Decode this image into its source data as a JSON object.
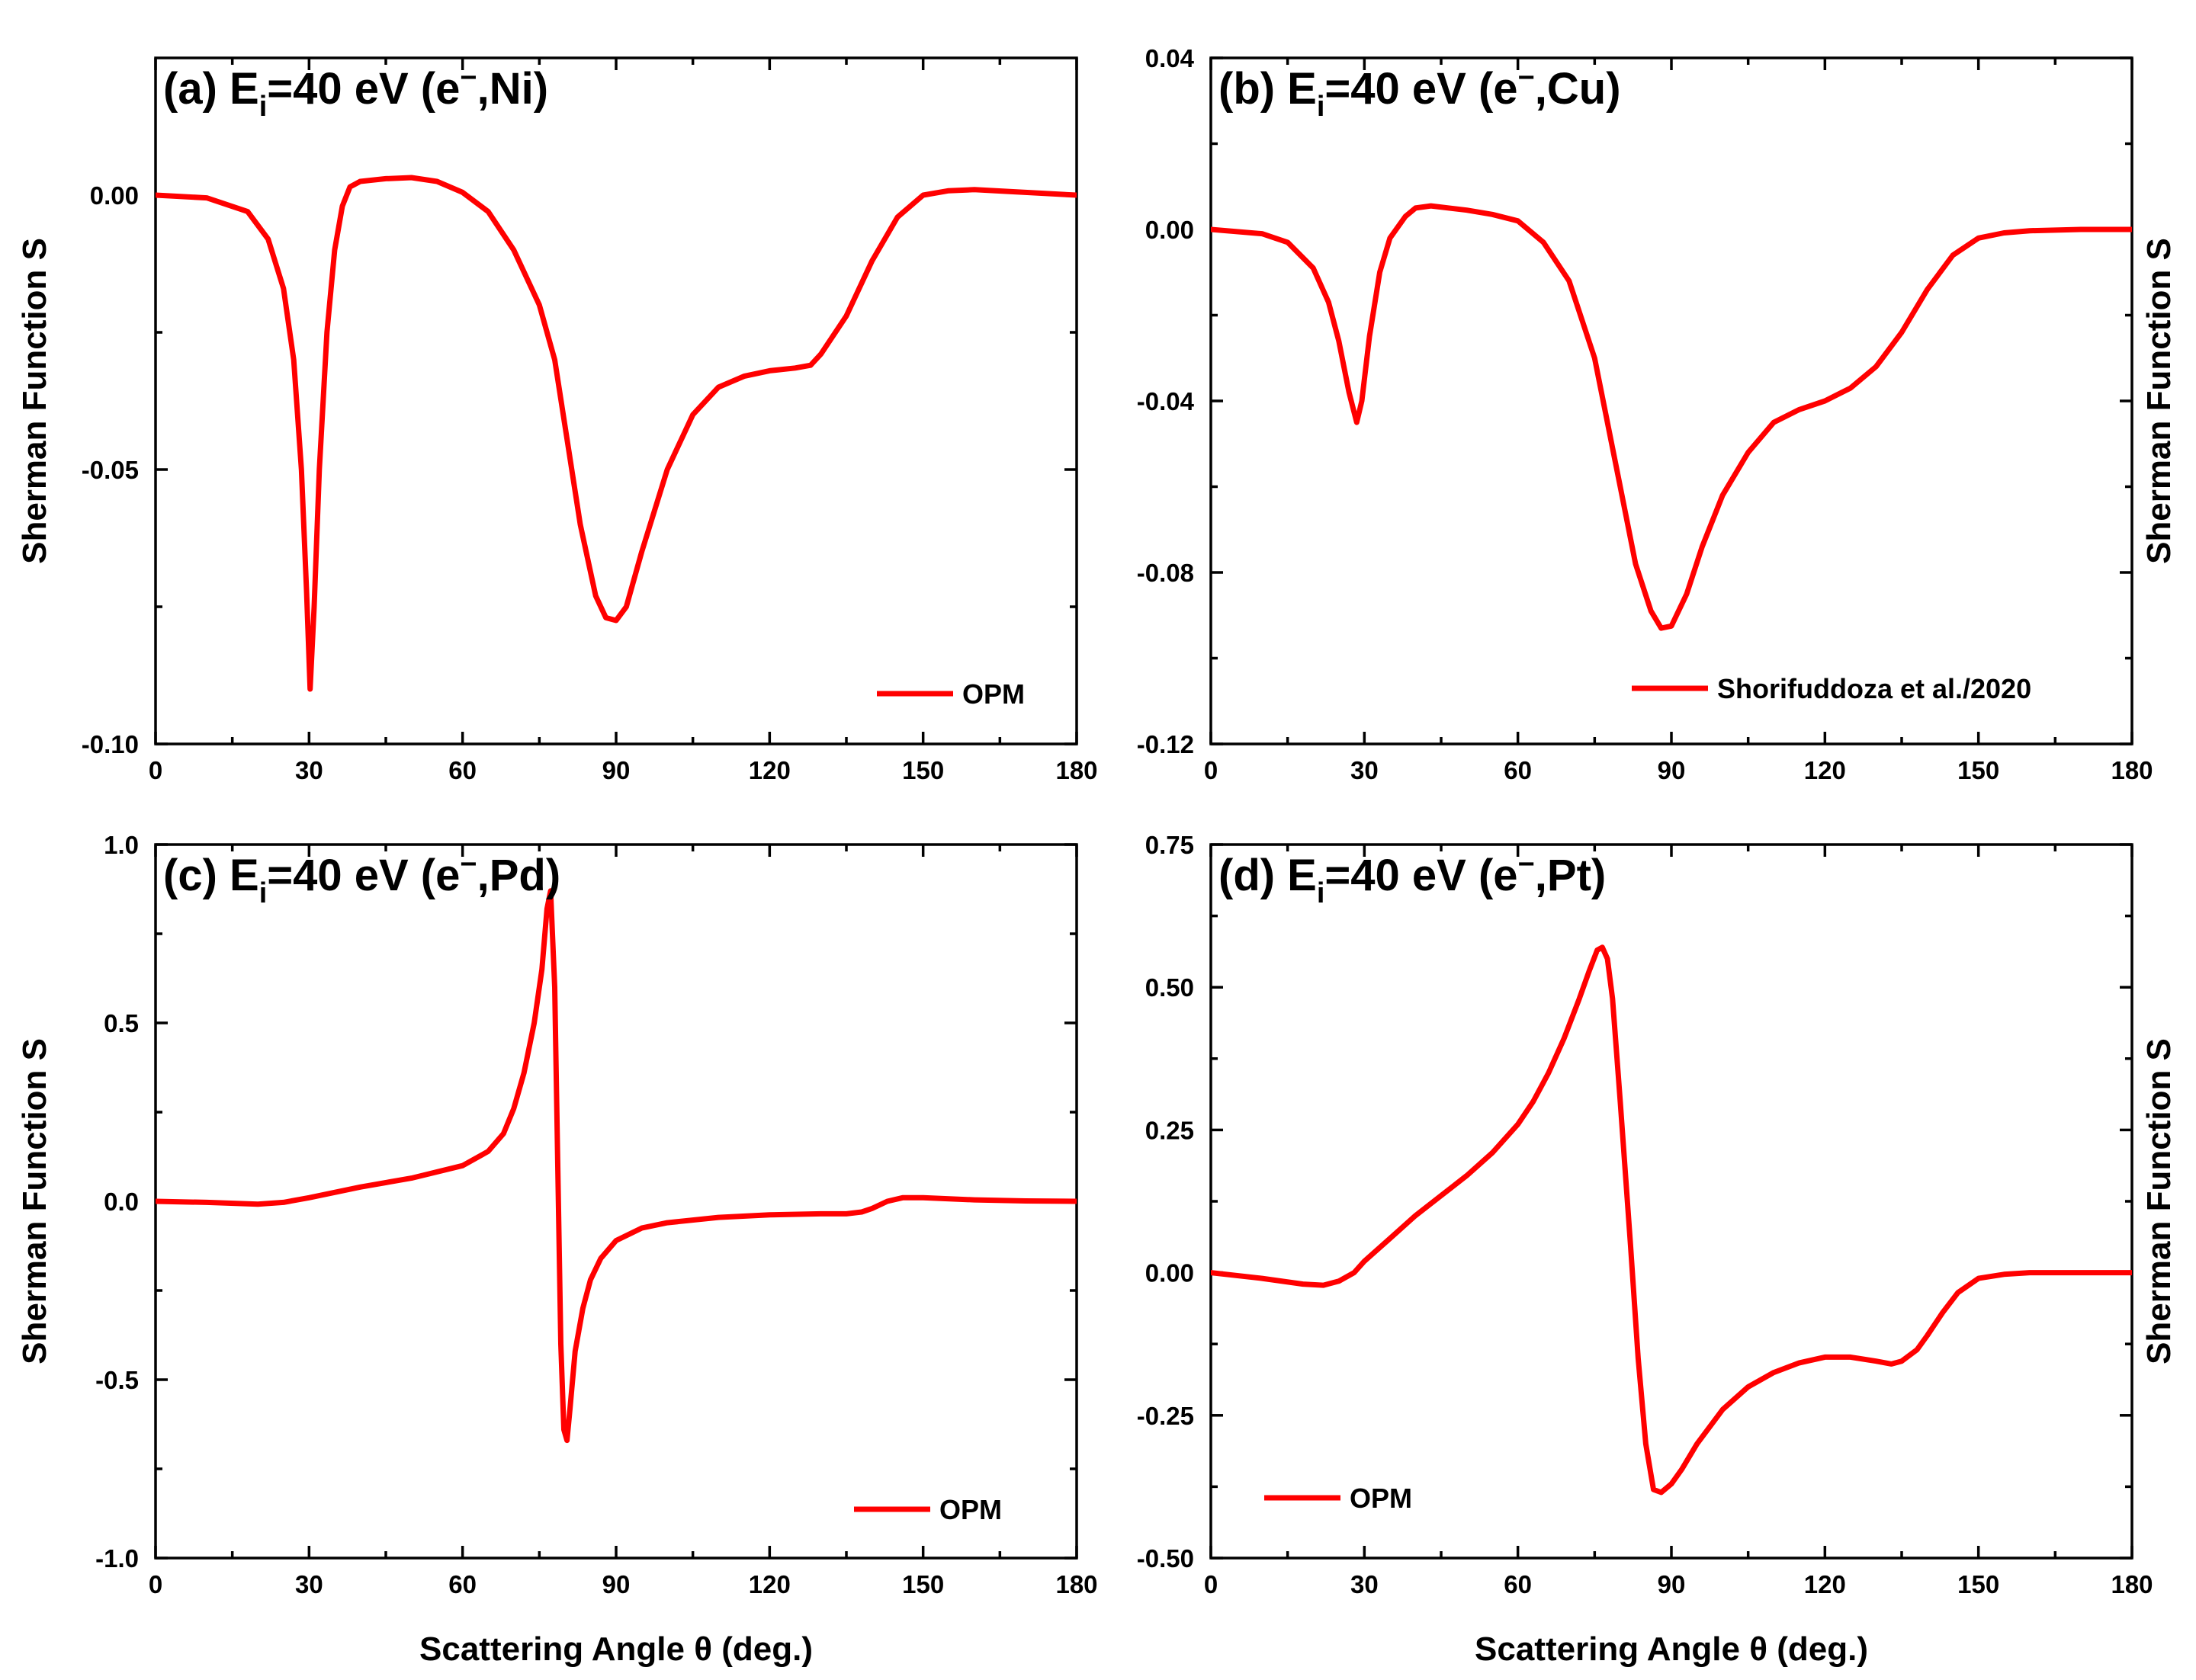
{
  "colors": {
    "series": "#ff0000",
    "axes": "#000000",
    "background": "#ffffff"
  },
  "chart_data": [
    {
      "panel": "a",
      "type": "line",
      "title": {
        "prefix": "(a) E",
        "subscript": "i",
        "rest": "=40 eV (e",
        "superscript": "−",
        "suffix": ",Ni)"
      },
      "xlabel": "",
      "ylabel": "Sherman Function S",
      "ylabel_side": "left",
      "xlim": [
        0,
        180
      ],
      "ylim": [
        -0.1,
        0.025
      ],
      "xticks": [
        0,
        30,
        60,
        90,
        120,
        150,
        180
      ],
      "xtick_labels": [
        "0",
        "30",
        "60",
        "90",
        "120",
        "150",
        "180"
      ],
      "yticks": [
        -0.1,
        -0.05,
        0.0
      ],
      "ytick_labels": [
        "-0.10",
        "-0.05",
        "0.00"
      ],
      "legend": "bottom-right",
      "series": [
        {
          "name": "OPM",
          "x": [
            0,
            10,
            18,
            22,
            25,
            27,
            28.5,
            29.5,
            30.2,
            31,
            32,
            33.5,
            35,
            36.5,
            38,
            40,
            45,
            50,
            55,
            60,
            65,
            70,
            75,
            78,
            80,
            83,
            86,
            88,
            90,
            92,
            95,
            100,
            105,
            110,
            115,
            120,
            125,
            128,
            130,
            135,
            140,
            145,
            150,
            155,
            160,
            170,
            180
          ],
          "y": [
            0.0,
            -0.0005,
            -0.003,
            -0.008,
            -0.017,
            -0.03,
            -0.05,
            -0.072,
            -0.09,
            -0.075,
            -0.05,
            -0.025,
            -0.01,
            -0.002,
            0.0015,
            0.0025,
            0.003,
            0.0032,
            0.0025,
            0.0005,
            -0.003,
            -0.01,
            -0.02,
            -0.03,
            -0.042,
            -0.06,
            -0.073,
            -0.077,
            -0.0775,
            -0.075,
            -0.065,
            -0.05,
            -0.04,
            -0.035,
            -0.033,
            -0.032,
            -0.0315,
            -0.031,
            -0.029,
            -0.022,
            -0.012,
            -0.004,
            0.0,
            0.0008,
            0.001,
            0.0005,
            0.0
          ]
        }
      ]
    },
    {
      "panel": "b",
      "type": "line",
      "title": {
        "prefix": "(b) E",
        "subscript": "i",
        "rest": "=40 eV (e",
        "superscript": "−",
        "suffix": ",Cu)"
      },
      "xlabel": "",
      "ylabel": "Sherman Function S",
      "ylabel_side": "right",
      "xlim": [
        0,
        180
      ],
      "ylim": [
        -0.12,
        0.04
      ],
      "xticks": [
        0,
        30,
        60,
        90,
        120,
        150,
        180
      ],
      "xtick_labels": [
        "0",
        "30",
        "60",
        "90",
        "120",
        "150",
        "180"
      ],
      "yticks": [
        -0.12,
        -0.08,
        -0.04,
        0.0,
        0.04
      ],
      "ytick_labels": [
        "-0.12",
        "-0.08",
        "-0.04",
        "0.00",
        "0.04"
      ],
      "legend": "bottom-right",
      "series": [
        {
          "name": "Shorifuddoza et al./2020",
          "x": [
            0,
            10,
            15,
            20,
            23,
            25,
            27,
            28.5,
            29.5,
            31,
            33,
            35,
            38,
            40,
            43,
            50,
            55,
            60,
            65,
            70,
            75,
            80,
            83,
            86,
            88,
            90,
            93,
            96,
            100,
            105,
            110,
            115,
            120,
            125,
            130,
            135,
            140,
            145,
            150,
            155,
            160,
            170,
            180
          ],
          "y": [
            0.0,
            -0.001,
            -0.003,
            -0.009,
            -0.017,
            -0.026,
            -0.038,
            -0.045,
            -0.04,
            -0.025,
            -0.01,
            -0.002,
            0.003,
            0.005,
            0.0055,
            0.0045,
            0.0035,
            0.002,
            -0.003,
            -0.012,
            -0.03,
            -0.06,
            -0.078,
            -0.089,
            -0.093,
            -0.0925,
            -0.085,
            -0.074,
            -0.062,
            -0.052,
            -0.045,
            -0.042,
            -0.04,
            -0.037,
            -0.032,
            -0.024,
            -0.014,
            -0.006,
            -0.002,
            -0.0008,
            -0.0003,
            0.0,
            0.0
          ]
        }
      ]
    },
    {
      "panel": "c",
      "type": "line",
      "title": {
        "prefix": "(c) E",
        "subscript": "i",
        "rest": "=40 eV (e",
        "superscript": "−",
        "suffix": ",Pd)"
      },
      "xlabel": "Scattering Angle θ (deg.)",
      "ylabel": "Sherman Function S",
      "ylabel_side": "left",
      "xlim": [
        0,
        180
      ],
      "ylim": [
        -1.0,
        1.0
      ],
      "xticks": [
        0,
        30,
        60,
        90,
        120,
        150,
        180
      ],
      "xtick_labels": [
        "0",
        "30",
        "60",
        "90",
        "120",
        "150",
        "180"
      ],
      "yticks": [
        -1.0,
        -0.5,
        0.0,
        0.5,
        1.0
      ],
      "ytick_labels": [
        "-1.0",
        "-0.5",
        "0.0",
        "0.5",
        "1.0"
      ],
      "legend": "bottom-right",
      "series": [
        {
          "name": "OPM",
          "x": [
            0,
            10,
            20,
            25,
            30,
            35,
            40,
            50,
            60,
            65,
            68,
            70,
            72,
            74,
            75.5,
            76.5,
            77.2,
            78,
            78.6,
            79.2,
            79.8,
            80.4,
            81,
            82,
            83.5,
            85,
            87,
            90,
            95,
            100,
            110,
            120,
            130,
            135,
            138,
            140,
            143,
            146,
            150,
            160,
            170,
            180
          ],
          "y": [
            0.0,
            -0.003,
            -0.008,
            -0.003,
            0.01,
            0.025,
            0.04,
            0.065,
            0.1,
            0.14,
            0.19,
            0.26,
            0.36,
            0.5,
            0.65,
            0.82,
            0.87,
            0.6,
            0.1,
            -0.4,
            -0.64,
            -0.67,
            -0.58,
            -0.42,
            -0.3,
            -0.22,
            -0.16,
            -0.11,
            -0.075,
            -0.06,
            -0.045,
            -0.038,
            -0.035,
            -0.035,
            -0.03,
            -0.02,
            0.0,
            0.01,
            0.01,
            0.004,
            0.001,
            0.0
          ]
        }
      ]
    },
    {
      "panel": "d",
      "type": "line",
      "title": {
        "prefix": "(d) E",
        "subscript": "i",
        "rest": "=40 eV (e",
        "superscript": "−",
        "suffix": ",Pt)"
      },
      "xlabel": "Scattering Angle θ (deg.)",
      "ylabel": "Sherman Function S",
      "ylabel_side": "right",
      "xlim": [
        0,
        180
      ],
      "ylim": [
        -0.5,
        0.75
      ],
      "xticks": [
        0,
        30,
        60,
        90,
        120,
        150,
        180
      ],
      "xtick_labels": [
        "0",
        "30",
        "60",
        "90",
        "120",
        "150",
        "180"
      ],
      "yticks": [
        -0.5,
        -0.25,
        0.0,
        0.25,
        0.5,
        0.75
      ],
      "ytick_labels": [
        "-0.50",
        "-0.25",
        "0.00",
        "0.25",
        "0.50",
        "0.75"
      ],
      "legend": "bottom-left",
      "series": [
        {
          "name": "OPM",
          "x": [
            0,
            10,
            18,
            22,
            25,
            28,
            30,
            35,
            40,
            45,
            50,
            55,
            60,
            63,
            66,
            69,
            72,
            74,
            75.5,
            76.5,
            77.5,
            78.5,
            80,
            82,
            83.5,
            85,
            86.5,
            88,
            90,
            92,
            95,
            100,
            105,
            110,
            115,
            120,
            125,
            130,
            133,
            135,
            138,
            140,
            143,
            146,
            150,
            155,
            160,
            170,
            180
          ],
          "y": [
            0.0,
            -0.01,
            -0.02,
            -0.022,
            -0.015,
            0.0,
            0.02,
            0.06,
            0.1,
            0.135,
            0.17,
            0.21,
            0.26,
            0.3,
            0.35,
            0.41,
            0.48,
            0.53,
            0.565,
            0.57,
            0.55,
            0.48,
            0.3,
            0.05,
            -0.15,
            -0.3,
            -0.38,
            -0.385,
            -0.37,
            -0.345,
            -0.3,
            -0.24,
            -0.2,
            -0.175,
            -0.158,
            -0.148,
            -0.148,
            -0.155,
            -0.16,
            -0.155,
            -0.135,
            -0.11,
            -0.07,
            -0.035,
            -0.01,
            -0.003,
            0.0,
            0.0,
            0.0
          ]
        }
      ]
    }
  ]
}
